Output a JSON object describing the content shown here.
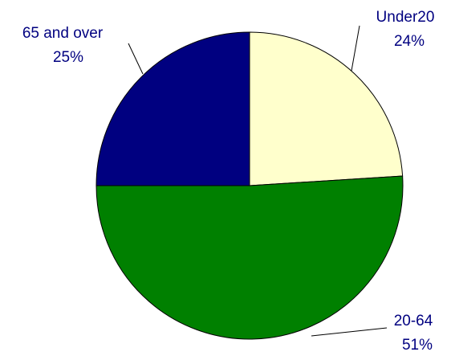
{
  "chart_data": {
    "type": "pie",
    "categories": [
      "Under20",
      "20-64",
      "65 and over"
    ],
    "values": [
      24,
      51,
      25
    ],
    "value_labels": [
      "24%",
      "51%",
      "25%"
    ],
    "colors": [
      "#ffffcc",
      "#008000",
      "#000080"
    ],
    "start_angle": 90,
    "direction": "clockwise"
  }
}
